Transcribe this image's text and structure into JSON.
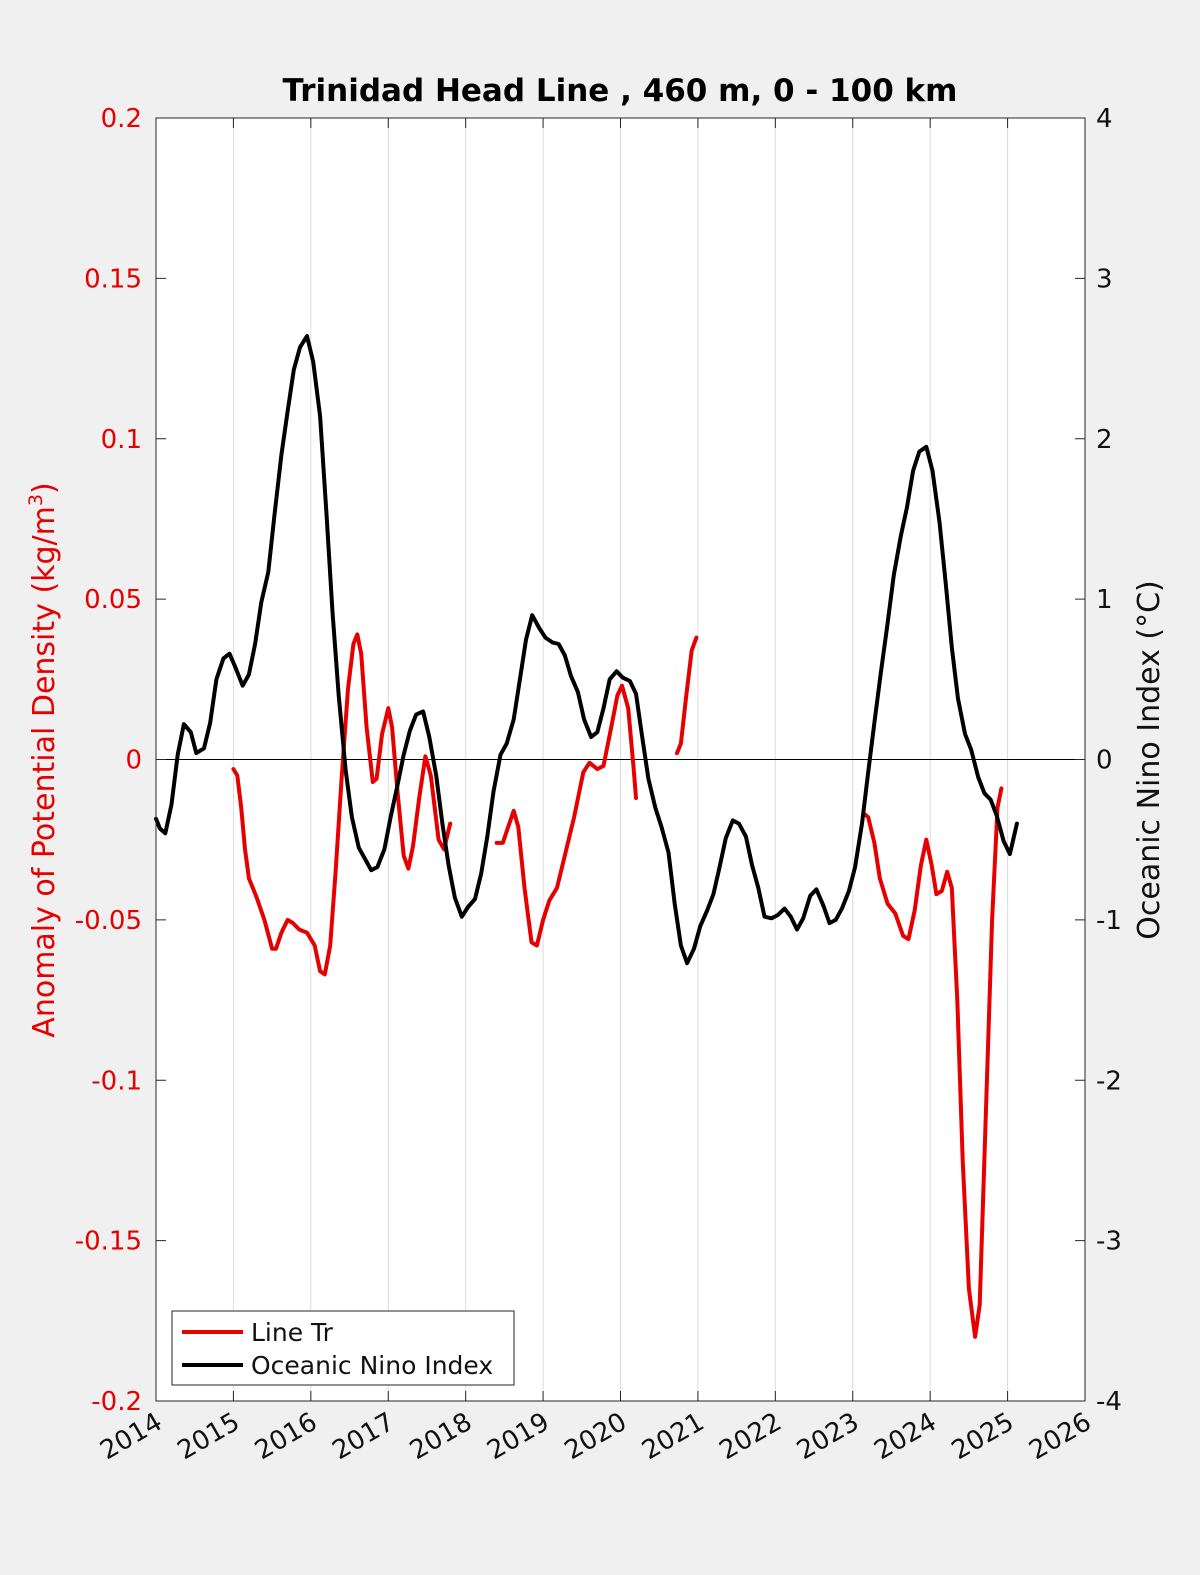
{
  "chart_data": {
    "type": "line",
    "title": "Trinidad Head Line , 460 m, 0 - 100 km",
    "xlabel": "",
    "ylabel_left": "Anomaly of Potential Density (kg/m",
    "ylabel_left_sup": "3",
    "ylabel_left_close": ")",
    "ylabel_right": "Oceanic Nino Index (°C)",
    "xlim": [
      2014,
      2026
    ],
    "ylim_left": [
      -0.2,
      0.2
    ],
    "ylim_right": [
      -4,
      4
    ],
    "grid": "vertical",
    "zero_line": true,
    "legend_position": "bottom-left",
    "x_ticks": [
      "2014",
      "2015",
      "2016",
      "2017",
      "2018",
      "2019",
      "2020",
      "2021",
      "2022",
      "2023",
      "2024",
      "2025",
      "2026"
    ],
    "y_ticks_left": [
      "0.2",
      "0.15",
      "0.1",
      "0.05",
      "0",
      "-0.05",
      "-0.1",
      "-0.15",
      "-0.2"
    ],
    "y_ticks_right": [
      "4",
      "3",
      "2",
      "1",
      "0",
      "-1",
      "-2",
      "-3",
      "-4"
    ],
    "series": [
      {
        "name": "Line Tr",
        "axis": "left",
        "color": "#e60000",
        "segments": [
          [
            [
              2015.0,
              -0.003
            ],
            [
              2015.05,
              -0.005
            ],
            [
              2015.1,
              -0.015
            ],
            [
              2015.15,
              -0.028
            ],
            [
              2015.2,
              -0.037
            ],
            [
              2015.3,
              -0.043
            ],
            [
              2015.4,
              -0.05
            ],
            [
              2015.5,
              -0.059
            ],
            [
              2015.55,
              -0.059
            ],
            [
              2015.62,
              -0.054
            ],
            [
              2015.7,
              -0.05
            ],
            [
              2015.77,
              -0.051
            ],
            [
              2015.85,
              -0.053
            ],
            [
              2015.95,
              -0.054
            ],
            [
              2016.05,
              -0.058
            ],
            [
              2016.12,
              -0.066
            ],
            [
              2016.18,
              -0.067
            ],
            [
              2016.25,
              -0.058
            ],
            [
              2016.32,
              -0.035
            ],
            [
              2016.4,
              -0.005
            ],
            [
              2016.48,
              0.022
            ],
            [
              2016.55,
              0.036
            ],
            [
              2016.6,
              0.039
            ],
            [
              2016.65,
              0.033
            ],
            [
              2016.72,
              0.01
            ],
            [
              2016.8,
              -0.007
            ],
            [
              2016.85,
              -0.006
            ],
            [
              2016.92,
              0.008
            ],
            [
              2017.0,
              0.016
            ],
            [
              2017.05,
              0.01
            ],
            [
              2017.12,
              -0.01
            ],
            [
              2017.2,
              -0.03
            ],
            [
              2017.26,
              -0.034
            ],
            [
              2017.32,
              -0.027
            ],
            [
              2017.4,
              -0.012
            ],
            [
              2017.48,
              0.001
            ],
            [
              2017.55,
              -0.005
            ],
            [
              2017.65,
              -0.025
            ],
            [
              2017.72,
              -0.028
            ],
            [
              2017.8,
              -0.02
            ]
          ],
          [
            [
              2018.4,
              -0.026
            ],
            [
              2018.48,
              -0.026
            ],
            [
              2018.55,
              -0.021
            ],
            [
              2018.62,
              -0.016
            ],
            [
              2018.68,
              -0.021
            ],
            [
              2018.76,
              -0.04
            ],
            [
              2018.85,
              -0.057
            ],
            [
              2018.92,
              -0.058
            ],
            [
              2019.0,
              -0.05
            ],
            [
              2019.08,
              -0.044
            ],
            [
              2019.18,
              -0.04
            ],
            [
              2019.28,
              -0.03
            ],
            [
              2019.4,
              -0.018
            ],
            [
              2019.52,
              -0.004
            ],
            [
              2019.6,
              -0.001
            ],
            [
              2019.7,
              -0.003
            ],
            [
              2019.78,
              -0.002
            ],
            [
              2019.88,
              0.01
            ],
            [
              2019.96,
              0.02
            ],
            [
              2020.02,
              0.023
            ],
            [
              2020.1,
              0.016
            ],
            [
              2020.17,
              -0.003
            ],
            [
              2020.2,
              -0.012
            ]
          ],
          [
            [
              2020.73,
              0.002
            ],
            [
              2020.78,
              0.005
            ],
            [
              2020.85,
              0.02
            ],
            [
              2020.92,
              0.034
            ],
            [
              2020.98,
              0.038
            ]
          ],
          [
            [
              2023.15,
              -0.017
            ],
            [
              2023.2,
              -0.018
            ],
            [
              2023.28,
              -0.026
            ],
            [
              2023.35,
              -0.037
            ],
            [
              2023.45,
              -0.045
            ],
            [
              2023.55,
              -0.048
            ],
            [
              2023.65,
              -0.055
            ],
            [
              2023.72,
              -0.056
            ],
            [
              2023.8,
              -0.047
            ],
            [
              2023.88,
              -0.033
            ],
            [
              2023.95,
              -0.025
            ],
            [
              2024.02,
              -0.033
            ],
            [
              2024.08,
              -0.042
            ],
            [
              2024.15,
              -0.041
            ],
            [
              2024.22,
              -0.035
            ],
            [
              2024.28,
              -0.04
            ],
            [
              2024.35,
              -0.075
            ],
            [
              2024.42,
              -0.125
            ],
            [
              2024.5,
              -0.165
            ],
            [
              2024.58,
              -0.18
            ],
            [
              2024.64,
              -0.17
            ],
            [
              2024.72,
              -0.11
            ],
            [
              2024.8,
              -0.05
            ],
            [
              2024.87,
              -0.015
            ],
            [
              2024.92,
              -0.009
            ]
          ]
        ]
      },
      {
        "name": "Oceanic Nino Index",
        "axis": "right",
        "color": "#000000",
        "segments": [
          [
            [
              2014.0,
              -0.37
            ],
            [
              2014.05,
              -0.43
            ],
            [
              2014.12,
              -0.46
            ],
            [
              2014.2,
              -0.28
            ],
            [
              2014.28,
              0.03
            ],
            [
              2014.36,
              0.22
            ],
            [
              2014.45,
              0.17
            ],
            [
              2014.52,
              0.04
            ],
            [
              2014.62,
              0.07
            ],
            [
              2014.7,
              0.23
            ],
            [
              2014.78,
              0.5
            ],
            [
              2014.87,
              0.63
            ],
            [
              2014.95,
              0.66
            ],
            [
              2015.03,
              0.57
            ],
            [
              2015.12,
              0.46
            ],
            [
              2015.2,
              0.53
            ],
            [
              2015.28,
              0.72
            ],
            [
              2015.36,
              0.98
            ],
            [
              2015.45,
              1.17
            ],
            [
              2015.53,
              1.52
            ],
            [
              2015.62,
              1.9
            ],
            [
              2015.7,
              2.17
            ],
            [
              2015.78,
              2.43
            ],
            [
              2015.86,
              2.57
            ],
            [
              2015.95,
              2.64
            ],
            [
              2016.03,
              2.48
            ],
            [
              2016.12,
              2.14
            ],
            [
              2016.2,
              1.55
            ],
            [
              2016.28,
              0.92
            ],
            [
              2016.36,
              0.4
            ],
            [
              2016.45,
              -0.07
            ],
            [
              2016.53,
              -0.36
            ],
            [
              2016.62,
              -0.55
            ],
            [
              2016.7,
              -0.62
            ],
            [
              2016.78,
              -0.69
            ],
            [
              2016.86,
              -0.67
            ],
            [
              2016.95,
              -0.56
            ],
            [
              2017.03,
              -0.36
            ],
            [
              2017.12,
              -0.16
            ],
            [
              2017.2,
              0.03
            ],
            [
              2017.28,
              0.18
            ],
            [
              2017.36,
              0.28
            ],
            [
              2017.45,
              0.3
            ],
            [
              2017.53,
              0.14
            ],
            [
              2017.62,
              -0.1
            ],
            [
              2017.7,
              -0.4
            ],
            [
              2017.78,
              -0.66
            ],
            [
              2017.86,
              -0.86
            ],
            [
              2017.95,
              -0.98
            ],
            [
              2018.03,
              -0.92
            ],
            [
              2018.12,
              -0.87
            ],
            [
              2018.2,
              -0.71
            ],
            [
              2018.28,
              -0.48
            ],
            [
              2018.36,
              -0.2
            ],
            [
              2018.45,
              0.03
            ],
            [
              2018.53,
              0.1
            ],
            [
              2018.62,
              0.25
            ],
            [
              2018.7,
              0.5
            ],
            [
              2018.78,
              0.75
            ],
            [
              2018.86,
              0.9
            ],
            [
              2018.95,
              0.82
            ],
            [
              2019.03,
              0.76
            ],
            [
              2019.12,
              0.73
            ],
            [
              2019.2,
              0.72
            ],
            [
              2019.28,
              0.65
            ],
            [
              2019.36,
              0.52
            ],
            [
              2019.45,
              0.42
            ],
            [
              2019.53,
              0.25
            ],
            [
              2019.62,
              0.14
            ],
            [
              2019.7,
              0.17
            ],
            [
              2019.78,
              0.32
            ],
            [
              2019.86,
              0.5
            ],
            [
              2019.95,
              0.55
            ],
            [
              2020.03,
              0.51
            ],
            [
              2020.12,
              0.49
            ],
            [
              2020.2,
              0.41
            ],
            [
              2020.28,
              0.14
            ],
            [
              2020.36,
              -0.12
            ],
            [
              2020.45,
              -0.3
            ],
            [
              2020.53,
              -0.42
            ],
            [
              2020.62,
              -0.58
            ],
            [
              2020.7,
              -0.9
            ],
            [
              2020.78,
              -1.16
            ],
            [
              2020.86,
              -1.27
            ],
            [
              2020.95,
              -1.18
            ],
            [
              2021.03,
              -1.04
            ],
            [
              2021.12,
              -0.94
            ],
            [
              2021.2,
              -0.84
            ],
            [
              2021.28,
              -0.67
            ],
            [
              2021.36,
              -0.49
            ],
            [
              2021.45,
              -0.38
            ],
            [
              2021.53,
              -0.4
            ],
            [
              2021.62,
              -0.48
            ],
            [
              2021.7,
              -0.66
            ],
            [
              2021.78,
              -0.8
            ],
            [
              2021.86,
              -0.98
            ],
            [
              2021.95,
              -0.99
            ],
            [
              2022.03,
              -0.97
            ],
            [
              2022.12,
              -0.93
            ],
            [
              2022.2,
              -0.98
            ],
            [
              2022.28,
              -1.06
            ],
            [
              2022.36,
              -0.99
            ],
            [
              2022.45,
              -0.85
            ],
            [
              2022.53,
              -0.81
            ],
            [
              2022.62,
              -0.91
            ],
            [
              2022.7,
              -1.02
            ],
            [
              2022.78,
              -1.0
            ],
            [
              2022.86,
              -0.93
            ],
            [
              2022.95,
              -0.82
            ],
            [
              2023.03,
              -0.67
            ],
            [
              2023.12,
              -0.4
            ],
            [
              2023.2,
              -0.08
            ],
            [
              2023.28,
              0.23
            ],
            [
              2023.36,
              0.53
            ],
            [
              2023.45,
              0.85
            ],
            [
              2023.53,
              1.15
            ],
            [
              2023.62,
              1.39
            ],
            [
              2023.7,
              1.57
            ],
            [
              2023.78,
              1.8
            ],
            [
              2023.86,
              1.92
            ],
            [
              2023.95,
              1.95
            ],
            [
              2024.03,
              1.8
            ],
            [
              2024.12,
              1.48
            ],
            [
              2024.2,
              1.1
            ],
            [
              2024.28,
              0.7
            ],
            [
              2024.36,
              0.38
            ],
            [
              2024.45,
              0.16
            ],
            [
              2024.53,
              0.06
            ],
            [
              2024.62,
              -0.11
            ],
            [
              2024.7,
              -0.21
            ],
            [
              2024.78,
              -0.25
            ],
            [
              2024.86,
              -0.35
            ],
            [
              2024.95,
              -0.51
            ],
            [
              2025.03,
              -0.59
            ],
            [
              2025.12,
              -0.4
            ]
          ]
        ]
      }
    ]
  }
}
